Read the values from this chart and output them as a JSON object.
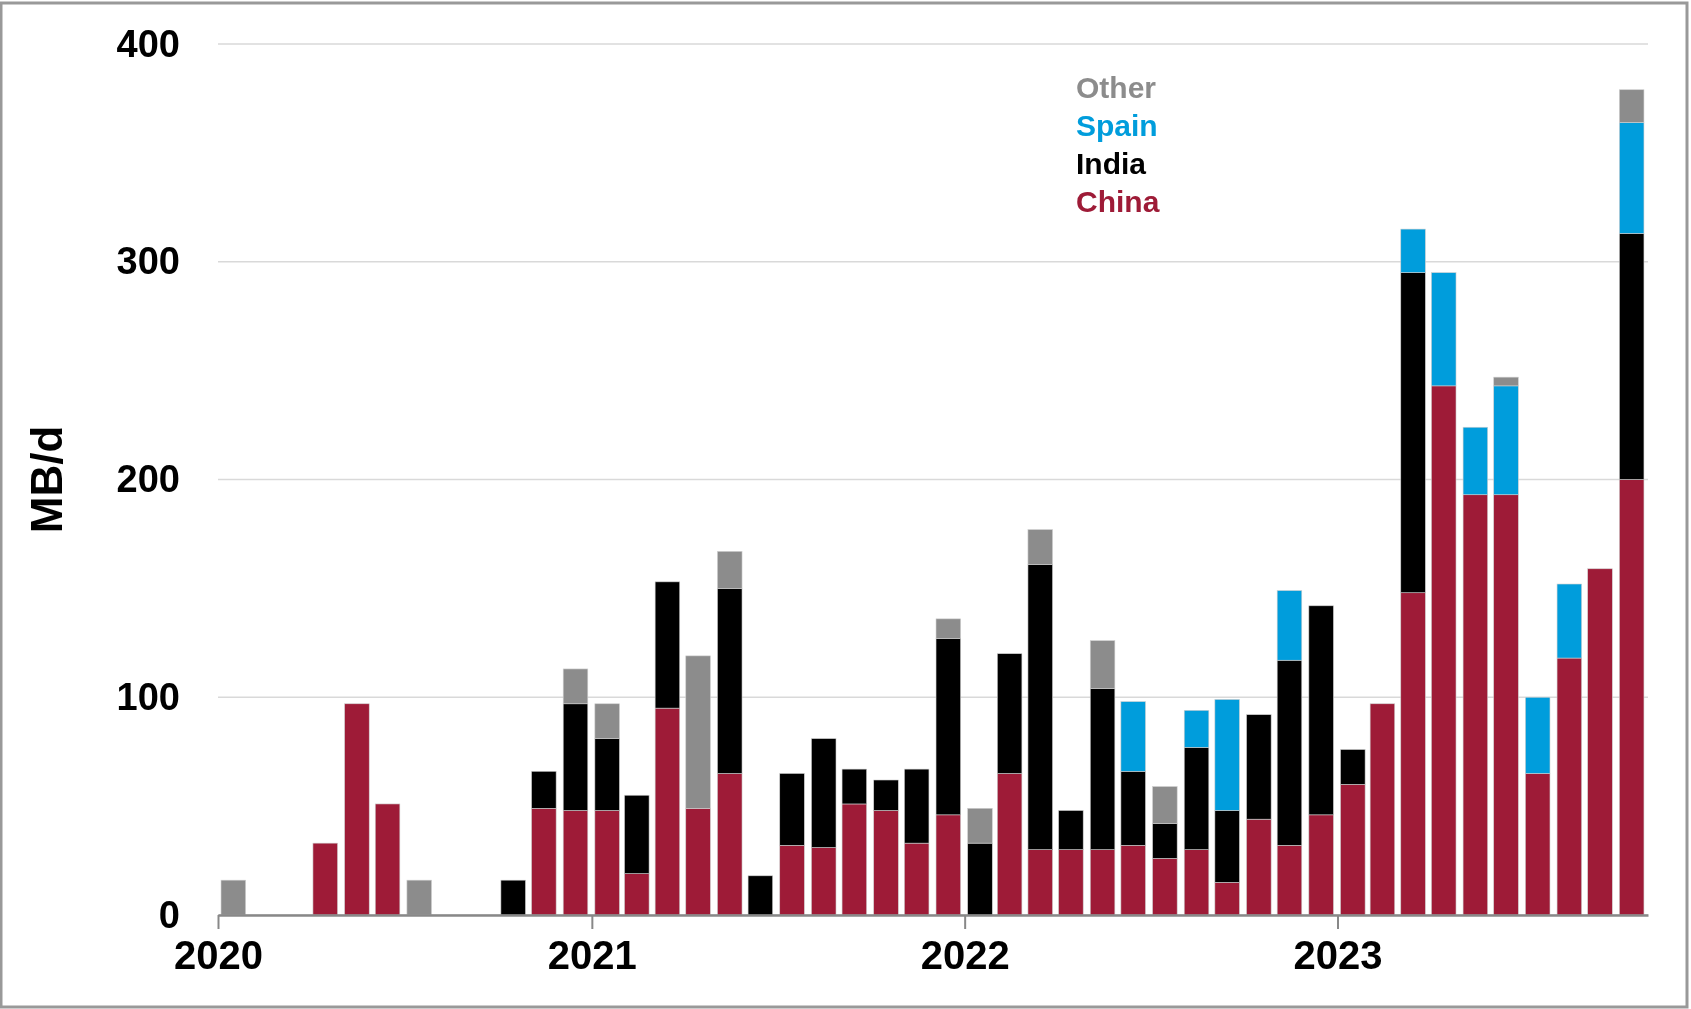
{
  "chart_data": {
    "type": "bar",
    "stacked": true,
    "ylabel": "MB/d",
    "x": [
      "2020-01-16",
      "2020-02-15",
      "2020-03-16",
      "2020-04-15",
      "2020-05-16",
      "2020-06-15",
      "2020-07-16",
      "2020-08-16",
      "2020-09-15",
      "2020-10-16",
      "2020-11-15",
      "2020-12-16",
      "2021-01-16",
      "2021-02-14",
      "2021-03-16",
      "2021-04-15",
      "2021-05-16",
      "2021-06-15",
      "2021-07-16",
      "2021-08-16",
      "2021-09-15",
      "2021-10-16",
      "2021-11-15",
      "2021-12-16",
      "2022-01-16",
      "2022-02-14",
      "2022-03-16",
      "2022-04-15",
      "2022-05-16",
      "2022-06-15",
      "2022-07-16",
      "2022-08-16",
      "2022-09-15",
      "2022-10-16",
      "2022-11-15",
      "2022-12-16",
      "2023-01-16",
      "2023-02-14",
      "2023-03-16",
      "2023-04-15",
      "2023-05-16",
      "2023-06-15",
      "2023-07-16",
      "2023-08-16",
      "2023-09-15",
      "2023-10-16"
    ],
    "series": [
      {
        "name": "China",
        "color": "#9e1b37",
        "values": [
          0,
          0,
          0,
          33,
          97,
          51,
          0,
          0,
          0,
          0,
          49,
          48,
          48,
          19,
          95,
          49,
          65,
          0,
          32,
          31,
          51,
          48,
          33,
          46,
          0,
          65,
          30,
          30,
          30,
          32,
          26,
          30,
          15,
          44,
          32,
          46,
          60,
          97,
          148,
          243,
          193,
          193,
          65,
          118,
          159,
          200
        ]
      },
      {
        "name": "India",
        "color": "#000000",
        "values": [
          0,
          0,
          0,
          0,
          0,
          0,
          0,
          0,
          0,
          16,
          17,
          49,
          33,
          36,
          58,
          0,
          85,
          18,
          33,
          50,
          16,
          14,
          34,
          81,
          33,
          55,
          131,
          18,
          74,
          34,
          16,
          47,
          33,
          48,
          85,
          96,
          16,
          0,
          147,
          0,
          0,
          0,
          0,
          0,
          0,
          113
        ]
      },
      {
        "name": "Spain",
        "color": "#009ddc",
        "values": [
          0,
          0,
          0,
          0,
          0,
          0,
          0,
          0,
          0,
          0,
          0,
          0,
          0,
          0,
          0,
          0,
          0,
          0,
          0,
          0,
          0,
          0,
          0,
          0,
          0,
          0,
          0,
          0,
          0,
          32,
          0,
          17,
          51,
          0,
          32,
          0,
          0,
          0,
          20,
          52,
          31,
          50,
          35,
          34,
          0,
          51
        ]
      },
      {
        "name": "Other",
        "color": "#8c8c8c",
        "values": [
          16,
          0,
          0,
          0,
          0,
          0,
          16,
          0,
          0,
          0,
          0,
          16,
          16,
          0,
          0,
          70,
          17,
          0,
          0,
          0,
          0,
          0,
          0,
          9,
          16,
          0,
          16,
          0,
          22,
          0,
          17,
          0,
          0,
          0,
          0,
          0,
          0,
          0,
          0,
          0,
          0,
          4,
          0,
          0,
          0,
          15
        ]
      }
    ],
    "xlim": [
      "2020-01",
      "2023-11"
    ],
    "xticks": [
      "2020",
      "2021",
      "2022",
      "2023"
    ],
    "ylim": [
      0,
      400
    ],
    "yticks": [
      0,
      100,
      200,
      300,
      400
    ],
    "grid": "y"
  }
}
